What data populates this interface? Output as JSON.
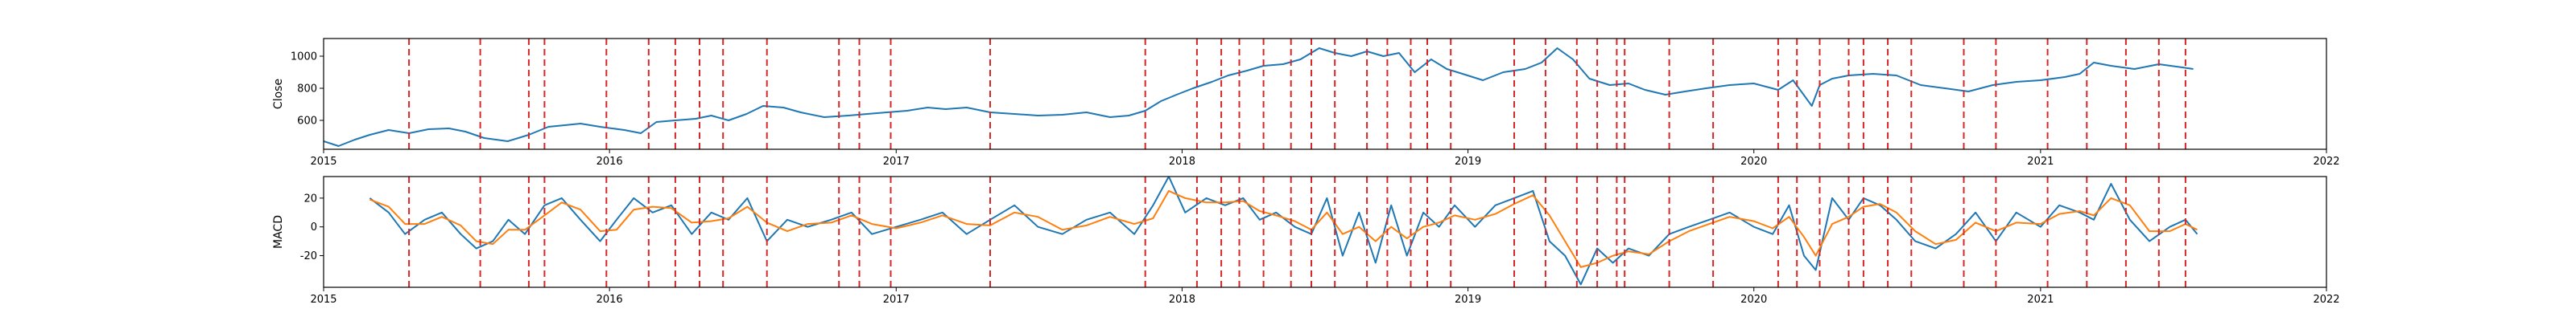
{
  "chart_data": [
    {
      "type": "line",
      "title": "",
      "xlabel": "",
      "ylabel": "Close",
      "xlim": [
        "2015-01-01",
        "2022-01-01"
      ],
      "ylim": [
        420,
        1110
      ],
      "xticks": [
        "2015",
        "2016",
        "2017",
        "2018",
        "2019",
        "2020",
        "2021",
        "2022"
      ],
      "yticks": [
        600,
        800,
        1000
      ],
      "grid": false,
      "series": [
        {
          "color": "#1f77b4",
          "x": [
            "2015-01-01",
            "2015-01-20",
            "2015-02-10",
            "2015-03-01",
            "2015-03-25",
            "2015-04-20",
            "2015-05-15",
            "2015-06-10",
            "2015-07-01",
            "2015-07-25",
            "2015-08-24",
            "2015-09-20",
            "2015-10-15",
            "2015-11-05",
            "2015-11-25",
            "2015-12-20",
            "2016-01-20",
            "2016-02-10",
            "2016-03-01",
            "2016-03-25",
            "2016-04-20",
            "2016-05-10",
            "2016-06-01",
            "2016-06-24",
            "2016-07-15",
            "2016-08-10",
            "2016-09-01",
            "2016-10-01",
            "2016-11-01",
            "2016-11-25",
            "2016-12-20",
            "2017-01-15",
            "2017-02-10",
            "2017-03-05",
            "2017-04-01",
            "2017-05-01",
            "2017-06-01",
            "2017-07-01",
            "2017-08-01",
            "2017-09-01",
            "2017-10-01",
            "2017-10-25",
            "2017-11-15",
            "2017-12-05",
            "2017-12-25",
            "2018-01-15",
            "2018-02-08",
            "2018-03-01",
            "2018-03-25",
            "2018-04-15",
            "2018-05-10",
            "2018-06-01",
            "2018-06-25",
            "2018-07-15",
            "2018-08-05",
            "2018-08-25",
            "2018-09-15",
            "2018-10-05",
            "2018-10-25",
            "2018-11-15",
            "2018-12-05",
            "2018-12-25",
            "2019-01-20",
            "2019-02-15",
            "2019-03-15",
            "2019-04-05",
            "2019-04-25",
            "2019-05-15",
            "2019-06-05",
            "2019-07-01",
            "2019-07-25",
            "2019-08-15",
            "2019-09-10",
            "2019-10-05",
            "2019-11-01",
            "2019-12-01",
            "2020-01-01",
            "2020-02-01",
            "2020-02-20",
            "2020-03-15",
            "2020-03-25",
            "2020-04-10",
            "2020-05-01",
            "2020-06-01",
            "2020-07-01",
            "2020-08-01",
            "2020-09-01",
            "2020-10-01",
            "2020-11-01",
            "2020-12-01",
            "2021-01-01",
            "2021-02-01",
            "2021-02-20",
            "2021-03-10",
            "2021-04-01",
            "2021-05-01",
            "2021-06-01",
            "2021-07-01",
            "2021-07-15"
          ],
          "values": [
            470,
            440,
            480,
            510,
            540,
            520,
            545,
            550,
            530,
            490,
            470,
            510,
            560,
            570,
            580,
            560,
            540,
            520,
            590,
            600,
            610,
            630,
            600,
            640,
            690,
            680,
            650,
            620,
            630,
            640,
            650,
            660,
            680,
            670,
            680,
            650,
            640,
            630,
            635,
            650,
            620,
            630,
            660,
            720,
            760,
            800,
            840,
            880,
            910,
            940,
            950,
            980,
            1050,
            1020,
            1000,
            1030,
            1000,
            1020,
            900,
            980,
            920,
            890,
            850,
            900,
            920,
            960,
            1050,
            980,
            860,
            820,
            830,
            790,
            760,
            780,
            800,
            820,
            830,
            790,
            850,
            690,
            820,
            860,
            880,
            890,
            880,
            820,
            800,
            780,
            820,
            840,
            850,
            870,
            890,
            960,
            940,
            920,
            950,
            930,
            920
          ]
        }
      ],
      "vlines": {
        "color": "#d62728",
        "style": "dashed",
        "x": [
          "2015-04-20",
          "2015-07-20",
          "2015-09-20",
          "2015-10-10",
          "2015-12-28",
          "2016-02-20",
          "2016-03-25",
          "2016-04-25",
          "2016-05-25",
          "2016-07-20",
          "2016-10-20",
          "2016-11-15",
          "2016-12-25",
          "2017-05-01",
          "2017-11-15",
          "2018-01-20",
          "2018-02-20",
          "2018-03-15",
          "2018-04-15",
          "2018-05-20",
          "2018-06-15",
          "2018-07-15",
          "2018-08-25",
          "2018-09-20",
          "2018-10-20",
          "2018-11-10",
          "2018-12-10",
          "2019-03-01",
          "2019-04-10",
          "2019-05-20",
          "2019-06-15",
          "2019-07-10",
          "2019-07-20",
          "2019-09-15",
          "2019-11-10",
          "2020-02-01",
          "2020-02-25",
          "2020-03-25",
          "2020-05-01",
          "2020-05-20",
          "2020-06-20",
          "2020-07-20",
          "2020-09-25",
          "2020-11-05",
          "2021-01-10",
          "2021-03-01",
          "2021-04-20",
          "2021-06-01",
          "2021-07-05"
        ]
      }
    },
    {
      "type": "line",
      "title": "",
      "xlabel": "",
      "ylabel": "MACD",
      "xlim": [
        "2015-01-01",
        "2022-01-01"
      ],
      "ylim": [
        -42,
        35
      ],
      "xticks": [
        "2015",
        "2016",
        "2017",
        "2018",
        "2019",
        "2020",
        "2021",
        "2022"
      ],
      "yticks": [
        -20,
        0,
        20
      ],
      "grid": false,
      "series": [
        {
          "color": "#1f77b4",
          "x": [
            "2015-03-01",
            "2015-03-25",
            "2015-04-15",
            "2015-05-10",
            "2015-06-01",
            "2015-06-25",
            "2015-07-15",
            "2015-08-05",
            "2015-08-25",
            "2015-09-15",
            "2015-10-10",
            "2015-11-01",
            "2015-11-25",
            "2015-12-20",
            "2016-01-10",
            "2016-02-01",
            "2016-02-25",
            "2016-03-20",
            "2016-04-15",
            "2016-05-10",
            "2016-06-01",
            "2016-06-25",
            "2016-07-20",
            "2016-08-15",
            "2016-09-10",
            "2016-10-10",
            "2016-11-05",
            "2016-12-01",
            "2017-01-01",
            "2017-02-01",
            "2017-03-01",
            "2017-04-01",
            "2017-05-01",
            "2017-06-01",
            "2017-07-01",
            "2017-08-01",
            "2017-09-01",
            "2017-10-01",
            "2017-11-01",
            "2017-11-25",
            "2017-12-15",
            "2018-01-05",
            "2018-02-01",
            "2018-02-25",
            "2018-03-20",
            "2018-04-10",
            "2018-05-01",
            "2018-05-25",
            "2018-06-15",
            "2018-07-05",
            "2018-07-25",
            "2018-08-15",
            "2018-09-05",
            "2018-09-25",
            "2018-10-15",
            "2018-11-05",
            "2018-11-25",
            "2018-12-15",
            "2019-01-10",
            "2019-02-05",
            "2019-03-01",
            "2019-03-25",
            "2019-04-15",
            "2019-05-05",
            "2019-05-25",
            "2019-06-15",
            "2019-07-05",
            "2019-07-25",
            "2019-08-20",
            "2019-09-15",
            "2019-10-10",
            "2019-11-05",
            "2019-12-01",
            "2020-01-01",
            "2020-01-25",
            "2020-02-15",
            "2020-03-05",
            "2020-03-20",
            "2020-04-10",
            "2020-05-01",
            "2020-05-20",
            "2020-06-10",
            "2020-07-01",
            "2020-07-25",
            "2020-08-20",
            "2020-09-15",
            "2020-10-10",
            "2020-11-05",
            "2020-12-01",
            "2021-01-01",
            "2021-01-25",
            "2021-02-20",
            "2021-03-10",
            "2021-04-01",
            "2021-04-25",
            "2021-05-20",
            "2021-06-15",
            "2021-07-05",
            "2021-07-20"
          ],
          "values": [
            20,
            10,
            -5,
            5,
            10,
            -5,
            -15,
            -10,
            5,
            -5,
            15,
            20,
            5,
            -10,
            5,
            20,
            10,
            15,
            -5,
            10,
            5,
            20,
            -10,
            5,
            0,
            5,
            10,
            -5,
            0,
            5,
            10,
            -5,
            5,
            15,
            0,
            -5,
            5,
            10,
            -5,
            15,
            35,
            10,
            20,
            15,
            20,
            5,
            10,
            0,
            -5,
            20,
            -20,
            10,
            -25,
            15,
            -20,
            10,
            0,
            15,
            0,
            15,
            20,
            25,
            -10,
            -20,
            -40,
            -15,
            -25,
            -15,
            -20,
            -5,
            0,
            5,
            10,
            0,
            -5,
            15,
            -20,
            -30,
            20,
            5,
            20,
            15,
            5,
            -10,
            -15,
            -5,
            10,
            -10,
            10,
            0,
            15,
            10,
            5,
            30,
            5,
            -10,
            0,
            5,
            -5
          ]
        },
        {
          "color": "#ff7f0e",
          "x": [
            "2015-03-01",
            "2015-03-25",
            "2015-04-15",
            "2015-05-10",
            "2015-06-01",
            "2015-06-25",
            "2015-07-15",
            "2015-08-05",
            "2015-08-25",
            "2015-09-15",
            "2015-10-10",
            "2015-11-01",
            "2015-11-25",
            "2015-12-20",
            "2016-01-10",
            "2016-02-01",
            "2016-02-25",
            "2016-03-20",
            "2016-04-15",
            "2016-05-10",
            "2016-06-01",
            "2016-06-25",
            "2016-07-20",
            "2016-08-15",
            "2016-09-10",
            "2016-10-10",
            "2016-11-05",
            "2016-12-01",
            "2017-01-01",
            "2017-02-01",
            "2017-03-01",
            "2017-04-01",
            "2017-05-01",
            "2017-06-01",
            "2017-07-01",
            "2017-08-01",
            "2017-09-01",
            "2017-10-01",
            "2017-11-01",
            "2017-11-25",
            "2017-12-15",
            "2018-01-05",
            "2018-02-01",
            "2018-02-25",
            "2018-03-20",
            "2018-04-10",
            "2018-05-01",
            "2018-05-25",
            "2018-06-15",
            "2018-07-05",
            "2018-07-25",
            "2018-08-15",
            "2018-09-05",
            "2018-09-25",
            "2018-10-15",
            "2018-11-05",
            "2018-11-25",
            "2018-12-15",
            "2019-01-10",
            "2019-02-05",
            "2019-03-01",
            "2019-03-25",
            "2019-04-15",
            "2019-05-05",
            "2019-05-25",
            "2019-06-15",
            "2019-07-05",
            "2019-07-25",
            "2019-08-20",
            "2019-09-15",
            "2019-10-10",
            "2019-11-05",
            "2019-12-01",
            "2020-01-01",
            "2020-01-25",
            "2020-02-15",
            "2020-03-05",
            "2020-03-20",
            "2020-04-10",
            "2020-05-01",
            "2020-05-20",
            "2020-06-10",
            "2020-07-01",
            "2020-07-25",
            "2020-08-20",
            "2020-09-15",
            "2020-10-10",
            "2020-11-05",
            "2020-12-01",
            "2021-01-01",
            "2021-01-25",
            "2021-02-20",
            "2021-03-10",
            "2021-04-01",
            "2021-04-25",
            "2021-05-20",
            "2021-06-15",
            "2021-07-05",
            "2021-07-20"
          ],
          "values": [
            19,
            14,
            2,
            2,
            7,
            1,
            -10,
            -12,
            -2,
            -2,
            8,
            17,
            12,
            -3,
            -2,
            12,
            14,
            13,
            3,
            4,
            6,
            14,
            3,
            -3,
            2,
            3,
            8,
            2,
            -1,
            3,
            8,
            2,
            1,
            10,
            7,
            -2,
            1,
            7,
            2,
            6,
            25,
            20,
            17,
            17,
            18,
            11,
            8,
            4,
            -2,
            10,
            -5,
            0,
            -10,
            0,
            -8,
            0,
            3,
            8,
            5,
            9,
            16,
            22,
            8,
            -10,
            -28,
            -25,
            -20,
            -17,
            -19,
            -10,
            -3,
            2,
            7,
            4,
            -1,
            7,
            -7,
            -20,
            2,
            7,
            14,
            16,
            10,
            -3,
            -12,
            -9,
            3,
            -3,
            3,
            2,
            9,
            11,
            8,
            20,
            15,
            -3,
            -3,
            2,
            -2
          ]
        }
      ],
      "vlines": {
        "color": "#d62728",
        "style": "dashed",
        "x": [
          "2015-04-20",
          "2015-07-20",
          "2015-09-20",
          "2015-10-10",
          "2015-12-28",
          "2016-02-20",
          "2016-03-25",
          "2016-04-25",
          "2016-05-25",
          "2016-07-20",
          "2016-10-20",
          "2016-11-15",
          "2016-12-25",
          "2017-05-01",
          "2017-11-15",
          "2018-01-20",
          "2018-02-20",
          "2018-03-15",
          "2018-04-15",
          "2018-05-20",
          "2018-06-15",
          "2018-07-15",
          "2018-08-25",
          "2018-09-20",
          "2018-10-20",
          "2018-11-10",
          "2018-12-10",
          "2019-03-01",
          "2019-04-10",
          "2019-05-20",
          "2019-06-15",
          "2019-07-10",
          "2019-07-20",
          "2019-09-15",
          "2019-11-10",
          "2020-02-01",
          "2020-02-25",
          "2020-03-25",
          "2020-05-01",
          "2020-05-20",
          "2020-06-20",
          "2020-07-20",
          "2020-09-25",
          "2020-11-05",
          "2021-01-10",
          "2021-03-01",
          "2021-04-20",
          "2021-06-01",
          "2021-07-05"
        ]
      }
    }
  ]
}
